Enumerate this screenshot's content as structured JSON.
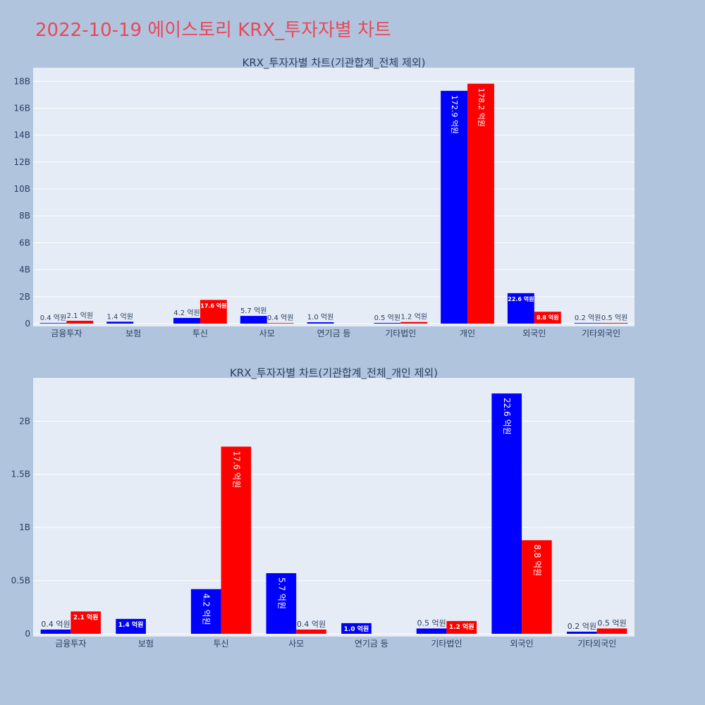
{
  "page": {
    "title": "2022-10-19 에이스토리 KRX_투자자별 차트"
  },
  "colors": {
    "series_a": "#0000ff",
    "series_b": "#ff0000",
    "plot_bg": "#e5ecf6",
    "page_bg": "#b0c4de",
    "page_title": "#e8485a"
  },
  "chart_data": [
    {
      "type": "bar",
      "title": "KRX_투자자별 차트(기관합계_전체 제외)",
      "categories": [
        "금융투자",
        "보험",
        "투신",
        "사모",
        "연기금 등",
        "기타법인",
        "개인",
        "외국인",
        "기타외국인"
      ],
      "series": [
        {
          "color": "#0000ff",
          "values": [
            0.04,
            0.14,
            0.42,
            0.57,
            0.1,
            0.05,
            17.29,
            2.26,
            0.02
          ],
          "labels": [
            "0.4 억원",
            "1.4 억원",
            "4.2 억원",
            "5.7 억원",
            "1.0 억원",
            "0.5 억원",
            "172.9 억원",
            "22.6 억원",
            "0.2 억원"
          ]
        },
        {
          "color": "#ff0000",
          "values": [
            0.21,
            null,
            1.76,
            0.04,
            null,
            0.12,
            17.82,
            0.88,
            0.05
          ],
          "labels": [
            "2.1 억원",
            "",
            "17.6 억원",
            "0.4 억원",
            "",
            "1.2 억원",
            "178.2 억원",
            "8.8 억원",
            "0.5 억원"
          ]
        }
      ],
      "ylim": [
        0,
        18.8
      ],
      "yticks": [
        0,
        2,
        4,
        6,
        8,
        10,
        12,
        14,
        16,
        18
      ],
      "ytick_labels": [
        "0",
        "2B",
        "4B",
        "6B",
        "8B",
        "10B",
        "12B",
        "14B",
        "16B",
        "18B"
      ],
      "grid": true,
      "legend": "none"
    },
    {
      "type": "bar",
      "title": "KRX_투자자별 차트(기관합계_전체_개인 제외)",
      "categories": [
        "금융투자",
        "보험",
        "투신",
        "사모",
        "연기금 등",
        "기타법인",
        "외국인",
        "기타외국인"
      ],
      "series": [
        {
          "color": "#0000ff",
          "values": [
            0.04,
            0.14,
            0.42,
            0.57,
            0.1,
            0.05,
            2.26,
            0.02
          ],
          "labels": [
            "0.4 억원",
            "1.4 억원",
            "4.2 억원",
            "5.7 억원",
            "1.0 억원",
            "0.5 억원",
            "22.6 억원",
            "0.2 억원"
          ]
        },
        {
          "color": "#ff0000",
          "values": [
            0.21,
            null,
            1.76,
            0.04,
            null,
            0.12,
            0.88,
            0.05
          ],
          "labels": [
            "2.1 억원",
            "",
            "17.6 억원",
            "0.4 억원",
            "",
            "1.2 억원",
            "8.8 억원",
            "0.5 억원"
          ]
        }
      ],
      "ylim": [
        0,
        2.38
      ],
      "yticks": [
        0,
        0.5,
        1,
        1.5,
        2
      ],
      "ytick_labels": [
        "0",
        "0.5B",
        "1B",
        "1.5B",
        "2B"
      ],
      "grid": true,
      "legend": "none"
    }
  ]
}
